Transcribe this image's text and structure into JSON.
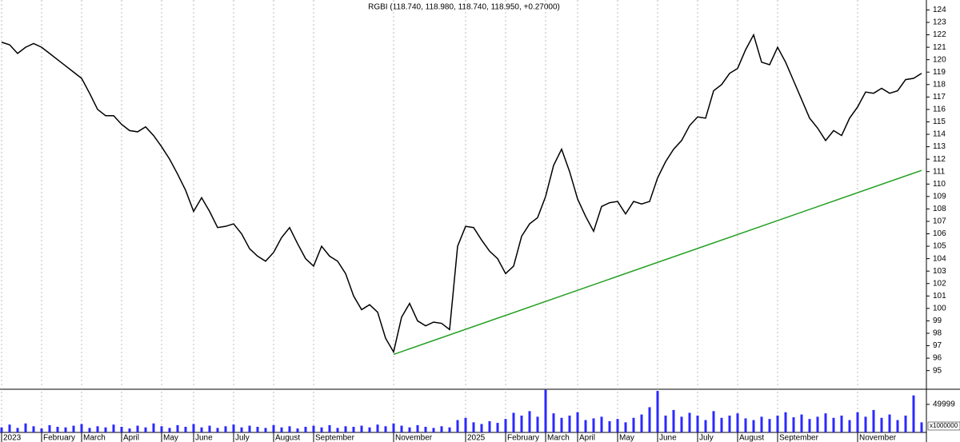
{
  "chart_data": [
    {
      "type": "line",
      "title": "RGBI (118.740, 118.980, 118.740, 118.950, +0.27000)",
      "categories": [
        "2023",
        null,
        null,
        null,
        null,
        "February",
        null,
        null,
        null,
        null,
        "March",
        null,
        null,
        null,
        null,
        "April",
        null,
        null,
        null,
        null,
        "May",
        null,
        null,
        null,
        "June",
        null,
        null,
        null,
        null,
        "July",
        null,
        null,
        null,
        null,
        "August",
        null,
        null,
        null,
        null,
        "September",
        null,
        null,
        null,
        null,
        null,
        null,
        null,
        null,
        null,
        "November",
        null,
        null,
        null,
        null,
        null,
        null,
        null,
        null,
        "2025",
        null,
        null,
        null,
        null,
        "February",
        null,
        null,
        null,
        null,
        "March",
        null,
        null,
        null,
        "April",
        null,
        null,
        null,
        null,
        "May",
        null,
        null,
        null,
        null,
        "June",
        null,
        null,
        null,
        null,
        "July",
        null,
        null,
        null,
        null,
        "August",
        null,
        null,
        null,
        null,
        "September",
        null,
        null,
        null,
        null,
        null,
        null,
        null,
        null,
        null,
        "November",
        null,
        null,
        null,
        null,
        null,
        null,
        null,
        null
      ],
      "series": [
        {
          "color": "#000000",
          "values": [
            121.4,
            121.2,
            120.5,
            121.0,
            121.3,
            121.0,
            120.5,
            120.0,
            119.5,
            119.0,
            118.5,
            117.3,
            116.0,
            115.5,
            115.5,
            114.8,
            114.3,
            114.2,
            114.6,
            113.9,
            113.0,
            112.0,
            110.8,
            109.5,
            107.8,
            108.9,
            107.8,
            106.5,
            106.6,
            106.8,
            106.0,
            104.8,
            104.2,
            103.8,
            104.5,
            105.7,
            106.5,
            105.2,
            104.0,
            103.4,
            105.0,
            104.2,
            103.8,
            102.8,
            101.0,
            99.9,
            100.3,
            99.7,
            97.6,
            96.5,
            99.3,
            100.4,
            99.0,
            98.6,
            98.9,
            98.8,
            98.3,
            105.0,
            106.6,
            106.5,
            105.5,
            104.6,
            104.0,
            102.8,
            103.4,
            105.8,
            106.8,
            107.3,
            109.0,
            111.5,
            112.8,
            111.0,
            108.8,
            107.4,
            106.2,
            108.2,
            108.5,
            108.6,
            107.6,
            108.6,
            108.4,
            108.6,
            110.5,
            111.8,
            112.8,
            113.5,
            114.7,
            115.4,
            115.3,
            117.5,
            118.0,
            118.9,
            119.3,
            120.8,
            122.0,
            119.8,
            119.6,
            121.0,
            119.8,
            118.3,
            116.8,
            115.3,
            114.5,
            113.5,
            114.3,
            113.9,
            115.3,
            116.2,
            117.4,
            117.3,
            117.7,
            117.3,
            117.5,
            118.4,
            118.5,
            118.9
          ]
        },
        {
          "color": "#22a022",
          "span_gaps": true,
          "values": [
            null,
            null,
            null,
            null,
            null,
            null,
            null,
            null,
            null,
            null,
            null,
            null,
            null,
            null,
            null,
            null,
            null,
            null,
            null,
            null,
            null,
            null,
            null,
            null,
            null,
            null,
            null,
            null,
            null,
            null,
            null,
            null,
            null,
            null,
            null,
            null,
            null,
            null,
            null,
            null,
            null,
            null,
            null,
            null,
            null,
            null,
            null,
            null,
            null,
            96.3,
            null,
            null,
            null,
            null,
            null,
            null,
            null,
            null,
            null,
            null,
            null,
            null,
            null,
            null,
            null,
            null,
            null,
            null,
            null,
            null,
            null,
            null,
            null,
            null,
            null,
            null,
            null,
            null,
            null,
            null,
            null,
            null,
            null,
            null,
            null,
            null,
            null,
            null,
            null,
            null,
            null,
            null,
            null,
            null,
            null,
            null,
            null,
            null,
            null,
            null,
            null,
            null,
            null,
            null,
            null,
            null,
            null,
            null,
            null,
            null,
            null,
            null,
            null,
            null,
            null,
            111.1
          ]
        }
      ],
      "ylim": [
        93.5,
        124.8
      ],
      "yticks": [
        95,
        96,
        97,
        98,
        99,
        100,
        101,
        102,
        103,
        104,
        105,
        106,
        107,
        108,
        109,
        110,
        111,
        112,
        113,
        114,
        115,
        116,
        117,
        118,
        119,
        120,
        121,
        122,
        123,
        124
      ],
      "grid": "x"
    },
    {
      "type": "bar",
      "color": "#2b2bff",
      "values": [
        9000,
        14000,
        8000,
        16000,
        11000,
        7000,
        13000,
        10000,
        9000,
        12000,
        15000,
        8000,
        11000,
        9000,
        14000,
        10000,
        7000,
        12000,
        9000,
        16000,
        11000,
        8000,
        13000,
        10000,
        15000,
        9000,
        12000,
        8000,
        11000,
        14000,
        9000,
        12000,
        10000,
        8000,
        13000,
        9000,
        11000,
        7000,
        10000,
        12000,
        9000,
        13000,
        8000,
        11000,
        10000,
        12000,
        9000,
        14000,
        11000,
        16000,
        12000,
        9000,
        13000,
        10000,
        8000,
        11000,
        9000,
        22000,
        26000,
        18000,
        15000,
        20000,
        17000,
        24000,
        35000,
        30000,
        38000,
        28000,
        76000,
        34000,
        26000,
        30000,
        36000,
        22000,
        25000,
        28000,
        20000,
        24000,
        18000,
        26000,
        32000,
        45000,
        74000,
        30000,
        40000,
        28000,
        35000,
        30000,
        22000,
        38000,
        26000,
        30000,
        34000,
        25000,
        22000,
        28000,
        24000,
        30000,
        36000,
        27000,
        32000,
        24000,
        28000,
        34000,
        26000,
        30000,
        22000,
        36000,
        28000,
        40000,
        26000,
        32000,
        22000,
        30000,
        66000,
        18000
      ],
      "ylim": [
        0,
        77000
      ],
      "yticks": [
        49999
      ],
      "unit_label": "x1000000"
    }
  ]
}
